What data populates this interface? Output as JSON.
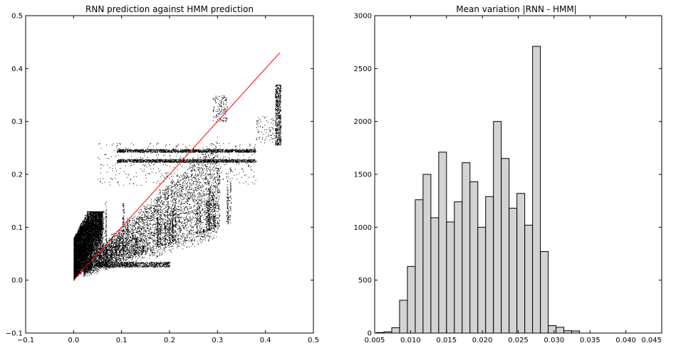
{
  "chart_data": [
    {
      "type": "scatter",
      "title": "RNN prediction against HMM prediction",
      "xlabel": "",
      "ylabel": "",
      "xlim": [
        -0.1,
        0.5
      ],
      "ylim": [
        -0.1,
        0.5
      ],
      "xticks": [
        -0.1,
        0.0,
        0.1,
        0.2,
        0.3,
        0.4,
        0.5
      ],
      "yticks": [
        -0.1,
        0.0,
        0.1,
        0.2,
        0.3,
        0.4,
        0.5
      ],
      "xtick_labels": [
        "−0.1",
        "0.0",
        "0.1",
        "0.2",
        "0.3",
        "0.4",
        "0.5"
      ],
      "ytick_labels": [
        "−0.1",
        "0.0",
        "0.1",
        "0.2",
        "0.3",
        "0.4",
        "0.5"
      ],
      "grid": false,
      "marker_color": "#000000",
      "reference_line": {
        "x": [
          0.0,
          0.43
        ],
        "y": [
          0.0,
          0.43
        ],
        "color": "#ff0000"
      },
      "point_clusters": [
        {
          "x_range": [
            0.0,
            0.06
          ],
          "y_range": [
            0.0,
            0.13
          ],
          "density": "very high"
        },
        {
          "x_range": [
            0.06,
            0.2
          ],
          "y_range": [
            0.02,
            0.15
          ],
          "density": "high"
        },
        {
          "x_range": [
            0.1,
            0.3
          ],
          "y_range": [
            0.05,
            0.2
          ],
          "density": "medium"
        },
        {
          "x_range": [
            0.09,
            0.38
          ],
          "y_range": [
            0.22,
            0.25
          ],
          "density": "horizontal band"
        },
        {
          "x_range": [
            0.27,
            0.33
          ],
          "y_range": [
            0.3,
            0.35
          ],
          "density": "low"
        },
        {
          "x_range": [
            0.38,
            0.43
          ],
          "y_range": [
            0.26,
            0.37
          ],
          "density": "vertical band"
        }
      ]
    },
    {
      "type": "bar",
      "title": "Mean variation |RNN - HMM|",
      "xlabel": "",
      "ylabel": "",
      "xlim": [
        0.005,
        0.045
      ],
      "ylim": [
        0,
        3000
      ],
      "xticks": [
        0.005,
        0.01,
        0.015,
        0.02,
        0.025,
        0.03,
        0.035,
        0.04,
        0.045
      ],
      "yticks": [
        0,
        500,
        1000,
        1500,
        2000,
        2500,
        3000
      ],
      "xtick_labels": [
        "0.005",
        "0.010",
        "0.015",
        "0.020",
        "0.025",
        "0.030",
        "0.035",
        "0.040",
        "0.045"
      ],
      "ytick_labels": [
        "0",
        "500",
        "1000",
        "1500",
        "2000",
        "2500",
        "3000"
      ],
      "grid": false,
      "bar_color": "#d3d3d3",
      "edge_color": "#000000",
      "bin_start": 0.0052,
      "bin_width": 0.00109,
      "values": [
        5,
        12,
        50,
        310,
        630,
        1260,
        1500,
        1090,
        1710,
        1050,
        1240,
        1610,
        1430,
        1000,
        1290,
        2000,
        1650,
        1180,
        1320,
        1020,
        2710,
        770,
        70,
        55,
        22,
        20
      ]
    }
  ]
}
